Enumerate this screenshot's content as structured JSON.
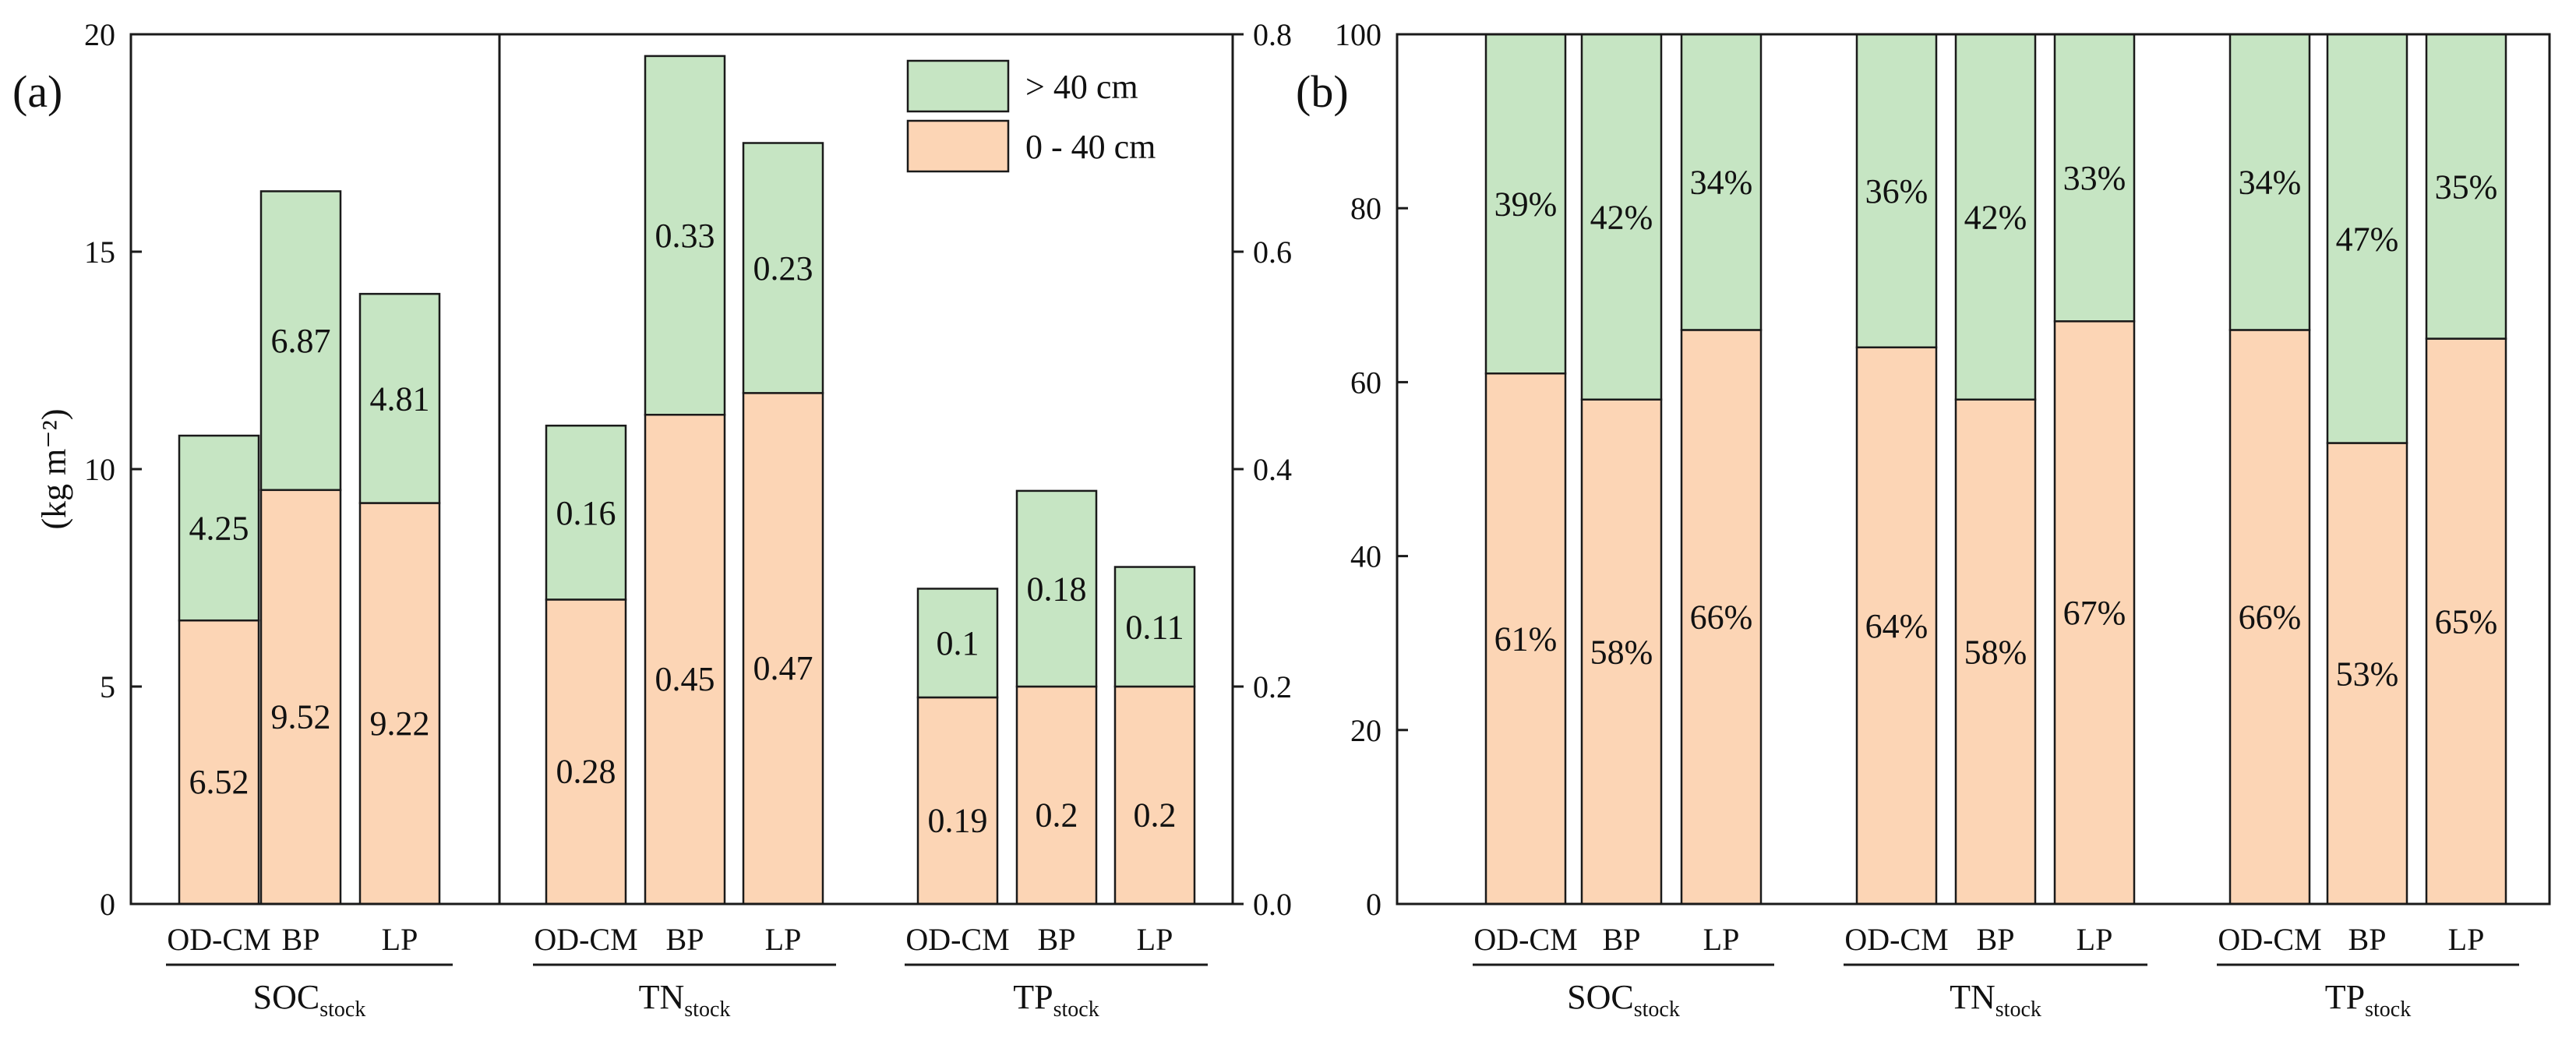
{
  "colors": {
    "lower": "#fcd5b5",
    "upper": "#c6e5c3",
    "stroke": "#1a1a1a"
  },
  "chart_data": [
    {
      "type": "bar",
      "stacked": true,
      "panel_label": "(a)",
      "ylabel": "(kg m⁻²)",
      "left_axis": {
        "range": [
          0,
          20
        ],
        "ticks": [
          "0",
          "5",
          "10",
          "15",
          "20"
        ]
      },
      "right_axis": {
        "range": [
          0.0,
          0.8
        ],
        "ticks": [
          "0.0",
          "0.2",
          "0.4",
          "0.6",
          "0.8"
        ]
      },
      "legend": {
        "position": "top-right",
        "entries": [
          "> 40 cm",
          "0 - 40 cm"
        ]
      },
      "groups": [
        {
          "name": "SOC",
          "sub": "stock",
          "axis": "left",
          "categories": [
            "OD-CM",
            "BP",
            "LP"
          ],
          "series": [
            {
              "name": "0 - 40 cm",
              "values": [
                6.52,
                9.52,
                9.22
              ],
              "labels": [
                "6.52",
                "9.52",
                "9.22"
              ]
            },
            {
              "name": "> 40 cm",
              "values": [
                4.25,
                6.87,
                4.81
              ],
              "labels": [
                "4.25",
                "6.87",
                "4.81"
              ]
            }
          ]
        },
        {
          "name": "TN",
          "sub": "stock",
          "axis": "right",
          "categories": [
            "OD-CM",
            "BP",
            "LP"
          ],
          "series": [
            {
              "name": "0 - 40 cm",
              "values": [
                0.28,
                0.45,
                0.47
              ],
              "labels": [
                "0.28",
                "0.45",
                "0.47"
              ]
            },
            {
              "name": "> 40 cm",
              "values": [
                0.16,
                0.33,
                0.23
              ],
              "labels": [
                "0.16",
                "0.33",
                "0.23"
              ]
            }
          ]
        },
        {
          "name": "TP",
          "sub": "stock",
          "axis": "right",
          "categories": [
            "OD-CM",
            "BP",
            "LP"
          ],
          "series": [
            {
              "name": "0 - 40 cm",
              "values": [
                0.19,
                0.2,
                0.2
              ],
              "labels": [
                "0.19",
                "0.2",
                "0.2"
              ]
            },
            {
              "name": "> 40 cm",
              "values": [
                0.1,
                0.18,
                0.11
              ],
              "labels": [
                "0.1",
                "0.18",
                "0.11"
              ]
            }
          ]
        }
      ]
    },
    {
      "type": "bar",
      "stacked": true,
      "percent": true,
      "panel_label": "(b)",
      "axis": {
        "range": [
          0,
          100
        ],
        "ticks": [
          "0",
          "20",
          "40",
          "60",
          "80",
          "100"
        ]
      },
      "groups": [
        {
          "name": "SOC",
          "sub": "stock",
          "categories": [
            "OD-CM",
            "BP",
            "LP"
          ],
          "series": [
            {
              "name": "0 - 40 cm",
              "values": [
                61,
                58,
                66
              ],
              "labels": [
                "61%",
                "58%",
                "66%"
              ]
            },
            {
              "name": "> 40 cm",
              "values": [
                39,
                42,
                34
              ],
              "labels": [
                "39%",
                "42%",
                "34%"
              ]
            }
          ]
        },
        {
          "name": "TN",
          "sub": "stock",
          "categories": [
            "OD-CM",
            "BP",
            "LP"
          ],
          "series": [
            {
              "name": "0 - 40 cm",
              "values": [
                64,
                58,
                67
              ],
              "labels": [
                "64%",
                "58%",
                "67%"
              ]
            },
            {
              "name": "> 40 cm",
              "values": [
                36,
                42,
                33
              ],
              "labels": [
                "36%",
                "42%",
                "33%"
              ]
            }
          ]
        },
        {
          "name": "TP",
          "sub": "stock",
          "categories": [
            "OD-CM",
            "BP",
            "LP"
          ],
          "series": [
            {
              "name": "0 - 40 cm",
              "values": [
                66,
                53,
                65
              ],
              "labels": [
                "66%",
                "53%",
                "65%"
              ]
            },
            {
              "name": "> 40 cm",
              "values": [
                34,
                47,
                35
              ],
              "labels": [
                "34%",
                "47%",
                "35%"
              ]
            }
          ]
        }
      ]
    }
  ]
}
